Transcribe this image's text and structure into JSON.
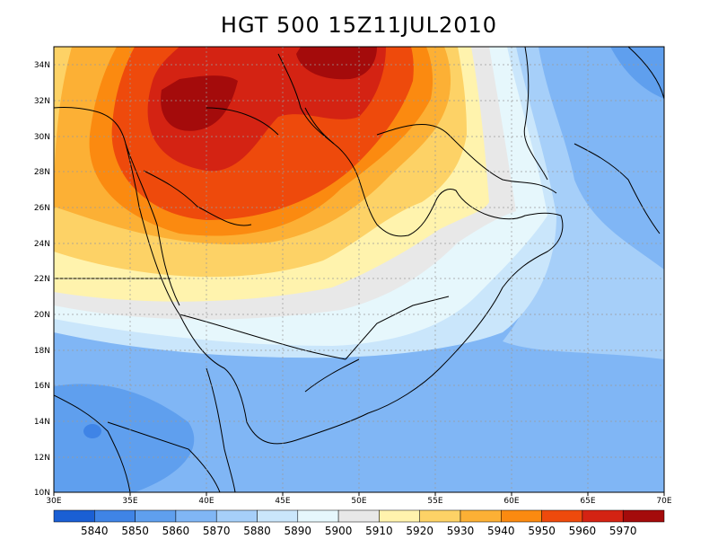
{
  "title": "HGT 500 15Z11JUL2010",
  "map": {
    "lon_range": [
      30,
      70
    ],
    "lat_range": [
      10,
      35
    ],
    "lon_ticks": [
      "30E",
      "35E",
      "40E",
      "45E",
      "50E",
      "55E",
      "60E",
      "65E",
      "70E"
    ],
    "lat_ticks": [
      "10N",
      "12N",
      "14N",
      "16N",
      "18N",
      "20N",
      "22N",
      "24N",
      "26N",
      "28N",
      "30N",
      "32N",
      "34N"
    ],
    "grid": true
  },
  "colorbar": {
    "colors": [
      "#1a5fd4",
      "#3f84e6",
      "#5f9fee",
      "#80b6f5",
      "#a6cff9",
      "#cae6fb",
      "#e6f7fc",
      "#e8e8e8",
      "#fff3ad",
      "#fdd266",
      "#fcb035",
      "#fb8a10",
      "#ee4a0c",
      "#d42313",
      "#a40b0b"
    ],
    "labels": [
      "5840",
      "5850",
      "5860",
      "5870",
      "5880",
      "5890",
      "5900",
      "5910",
      "5920",
      "5930",
      "5940",
      "5950",
      "5960",
      "5970"
    ]
  }
}
